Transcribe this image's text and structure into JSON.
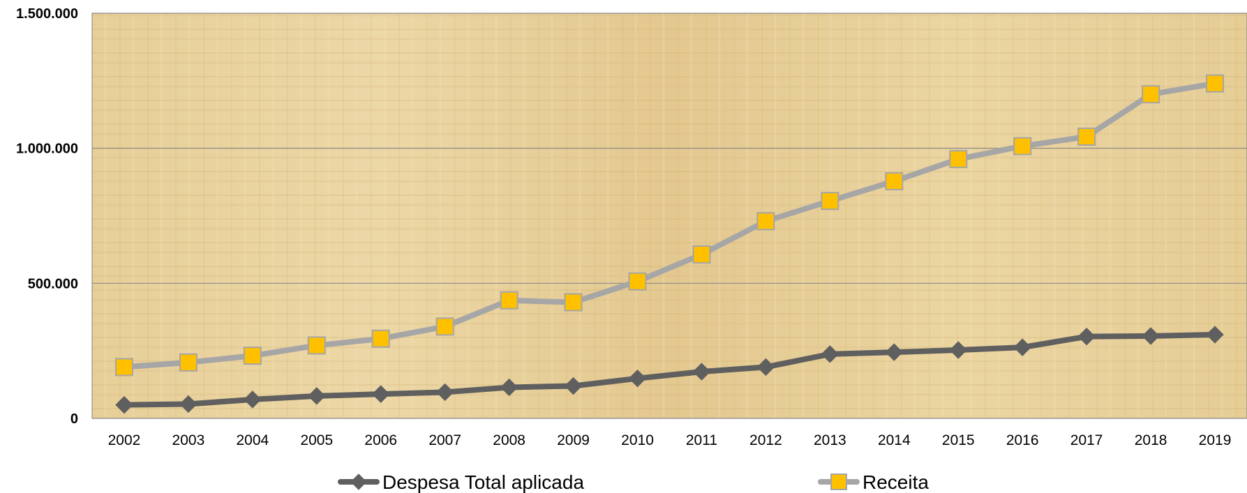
{
  "chart_data": {
    "type": "line",
    "title": "",
    "xlabel": "",
    "ylabel": "",
    "categories": [
      "2002",
      "2003",
      "2004",
      "2005",
      "2006",
      "2007",
      "2008",
      "2009",
      "2010",
      "2011",
      "2012",
      "2013",
      "2014",
      "2015",
      "2016",
      "2017",
      "2018",
      "2019"
    ],
    "ylim": [
      0,
      1500000
    ],
    "yticks": [
      0,
      500000,
      1000000,
      1500000
    ],
    "ytick_labels": [
      "0",
      "500.000",
      "1.000.000",
      "1.500.000"
    ],
    "grid": true,
    "legend_position": "bottom",
    "series": [
      {
        "name": "Despesa Total aplicada",
        "color": "#5f5f5f",
        "marker": "diamond",
        "values": [
          50000,
          53000,
          70000,
          83000,
          90000,
          97000,
          115000,
          120000,
          148000,
          173000,
          190000,
          238000,
          245000,
          253000,
          263000,
          303000,
          305000,
          310000
        ]
      },
      {
        "name": "Receita",
        "color": "#a6a6a6",
        "marker": "square",
        "marker_fill": "#ffc000",
        "values": [
          190000,
          207000,
          232000,
          270000,
          295000,
          340000,
          437000,
          430000,
          507000,
          607000,
          730000,
          805000,
          878000,
          960000,
          1008000,
          1043000,
          1200000,
          1240000
        ]
      }
    ]
  }
}
